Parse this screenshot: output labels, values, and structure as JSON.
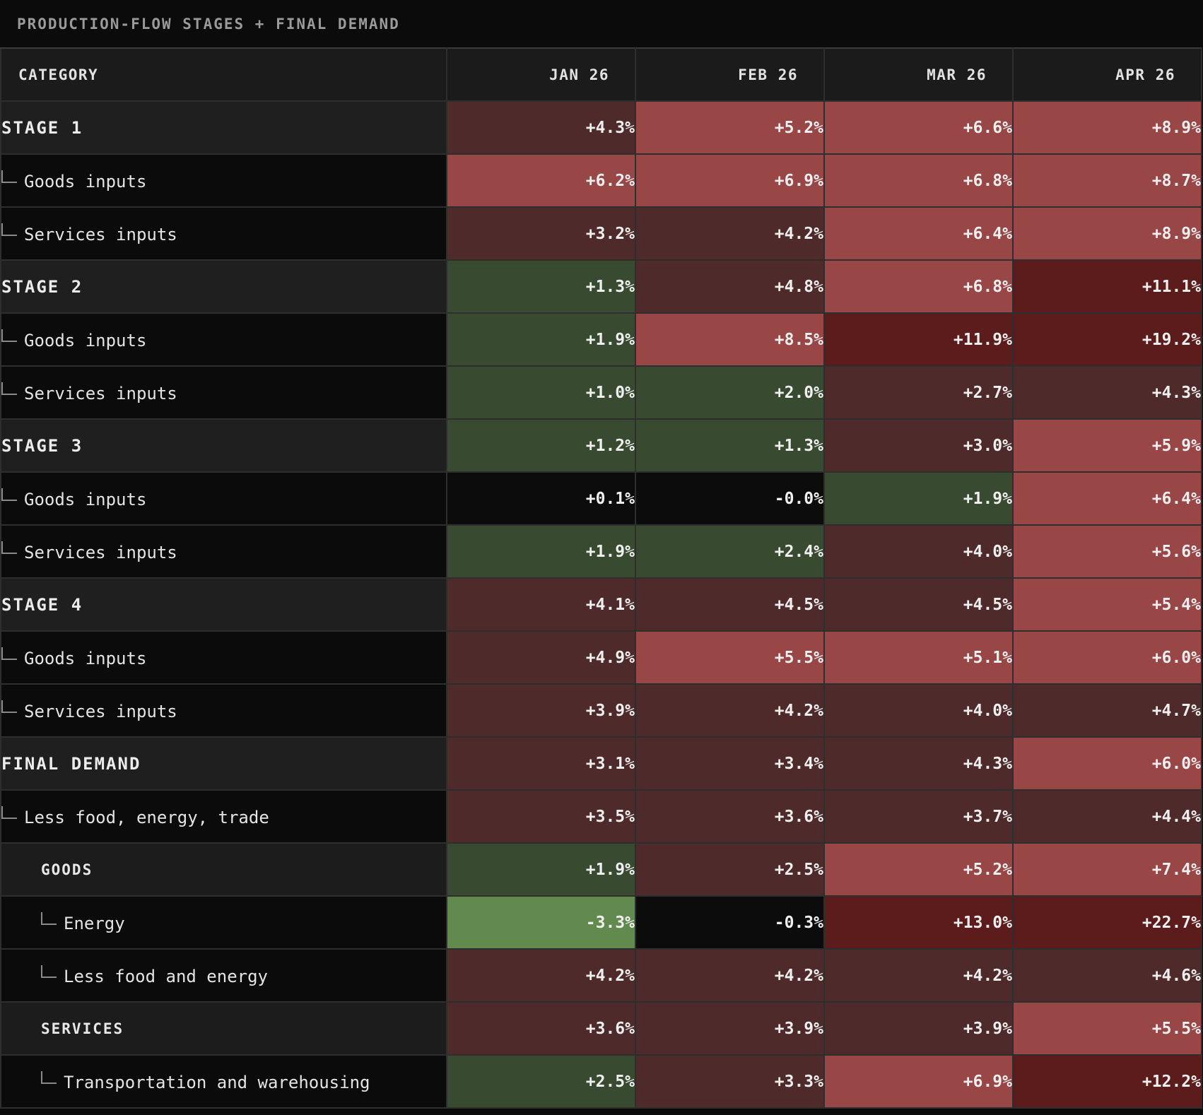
{
  "title": "PRODUCTION-FLOW STAGES + FINAL DEMAND",
  "header": {
    "category": "CATEGORY",
    "months": [
      "JAN 26",
      "FEB 26",
      "MAR 26",
      "APR 26"
    ]
  },
  "colors": {
    "strong_red": "#5c1c1c",
    "red": "#984646",
    "muted_red": "#4f2a2a",
    "neutral": "#0c0c0c",
    "dark_green": "#384a30",
    "bright_green": "#628a4e"
  },
  "chart_data": {
    "type": "heatmap",
    "title": "PRODUCTION-FLOW STAGES + FINAL DEMAND",
    "columns": [
      "JAN 26",
      "FEB 26",
      "MAR 26",
      "APR 26"
    ],
    "rows": [
      {
        "label": "STAGE 1",
        "level": "stage",
        "display": [
          "+4.3%",
          "+5.2%",
          "+6.6%",
          "+8.9%"
        ],
        "values": [
          4.3,
          5.2,
          6.6,
          8.9
        ],
        "shade": [
          "muted_red",
          "red",
          "red",
          "red"
        ]
      },
      {
        "label": "Goods inputs",
        "level": "sub",
        "display": [
          "+6.2%",
          "+6.9%",
          "+6.8%",
          "+8.7%"
        ],
        "values": [
          6.2,
          6.9,
          6.8,
          8.7
        ],
        "shade": [
          "red",
          "red",
          "red",
          "red"
        ]
      },
      {
        "label": "Services inputs",
        "level": "sub",
        "display": [
          "+3.2%",
          "+4.2%",
          "+6.4%",
          "+8.9%"
        ],
        "values": [
          3.2,
          4.2,
          6.4,
          8.9
        ],
        "shade": [
          "muted_red",
          "muted_red",
          "red",
          "red"
        ]
      },
      {
        "label": "STAGE 2",
        "level": "stage",
        "display": [
          "+1.3%",
          "+4.8%",
          "+6.8%",
          "+11.1%"
        ],
        "values": [
          1.3,
          4.8,
          6.8,
          11.1
        ],
        "shade": [
          "dark_green",
          "muted_red",
          "red",
          "strong_red"
        ]
      },
      {
        "label": "Goods inputs",
        "level": "sub",
        "display": [
          "+1.9%",
          "+8.5%",
          "+11.9%",
          "+19.2%"
        ],
        "values": [
          1.9,
          8.5,
          11.9,
          19.2
        ],
        "shade": [
          "dark_green",
          "red",
          "strong_red",
          "strong_red"
        ]
      },
      {
        "label": "Services inputs",
        "level": "sub",
        "display": [
          "+1.0%",
          "+2.0%",
          "+2.7%",
          "+4.3%"
        ],
        "values": [
          1.0,
          2.0,
          2.7,
          4.3
        ],
        "shade": [
          "dark_green",
          "dark_green",
          "muted_red",
          "muted_red"
        ]
      },
      {
        "label": "STAGE 3",
        "level": "stage",
        "display": [
          "+1.2%",
          "+1.3%",
          "+3.0%",
          "+5.9%"
        ],
        "values": [
          1.2,
          1.3,
          3.0,
          5.9
        ],
        "shade": [
          "dark_green",
          "dark_green",
          "muted_red",
          "red"
        ]
      },
      {
        "label": "Goods inputs",
        "level": "sub",
        "display": [
          "+0.1%",
          "-0.0%",
          "+1.9%",
          "+6.4%"
        ],
        "values": [
          0.1,
          -0.0,
          1.9,
          6.4
        ],
        "shade": [
          "neutral",
          "neutral",
          "dark_green",
          "red"
        ]
      },
      {
        "label": "Services inputs",
        "level": "sub",
        "display": [
          "+1.9%",
          "+2.4%",
          "+4.0%",
          "+5.6%"
        ],
        "values": [
          1.9,
          2.4,
          4.0,
          5.6
        ],
        "shade": [
          "dark_green",
          "dark_green",
          "muted_red",
          "red"
        ]
      },
      {
        "label": "STAGE 4",
        "level": "stage",
        "display": [
          "+4.1%",
          "+4.5%",
          "+4.5%",
          "+5.4%"
        ],
        "values": [
          4.1,
          4.5,
          4.5,
          5.4
        ],
        "shade": [
          "muted_red",
          "muted_red",
          "muted_red",
          "red"
        ]
      },
      {
        "label": "Goods inputs",
        "level": "sub",
        "display": [
          "+4.9%",
          "+5.5%",
          "+5.1%",
          "+6.0%"
        ],
        "values": [
          4.9,
          5.5,
          5.1,
          6.0
        ],
        "shade": [
          "muted_red",
          "red",
          "red",
          "red"
        ]
      },
      {
        "label": "Services inputs",
        "level": "sub",
        "display": [
          "+3.9%",
          "+4.2%",
          "+4.0%",
          "+4.7%"
        ],
        "values": [
          3.9,
          4.2,
          4.0,
          4.7
        ],
        "shade": [
          "muted_red",
          "muted_red",
          "muted_red",
          "muted_red"
        ]
      },
      {
        "label": "FINAL DEMAND",
        "level": "stage",
        "display": [
          "+3.1%",
          "+3.4%",
          "+4.3%",
          "+6.0%"
        ],
        "values": [
          3.1,
          3.4,
          4.3,
          6.0
        ],
        "shade": [
          "muted_red",
          "muted_red",
          "muted_red",
          "red"
        ]
      },
      {
        "label": "Less food, energy, trade",
        "level": "sub",
        "display": [
          "+3.5%",
          "+3.6%",
          "+3.7%",
          "+4.4%"
        ],
        "values": [
          3.5,
          3.6,
          3.7,
          4.4
        ],
        "shade": [
          "muted_red",
          "muted_red",
          "muted_red",
          "muted_red"
        ]
      },
      {
        "label": "GOODS",
        "level": "group",
        "display": [
          "+1.9%",
          "+2.5%",
          "+5.2%",
          "+7.4%"
        ],
        "values": [
          1.9,
          2.5,
          5.2,
          7.4
        ],
        "shade": [
          "dark_green",
          "muted_red",
          "red",
          "red"
        ]
      },
      {
        "label": "Energy",
        "level": "subsub",
        "display": [
          "-3.3%",
          "-0.3%",
          "+13.0%",
          "+22.7%"
        ],
        "values": [
          -3.3,
          -0.3,
          13.0,
          22.7
        ],
        "shade": [
          "bright_green",
          "neutral",
          "strong_red",
          "strong_red"
        ]
      },
      {
        "label": "Less food and energy",
        "level": "subsub",
        "display": [
          "+4.2%",
          "+4.2%",
          "+4.2%",
          "+4.6%"
        ],
        "values": [
          4.2,
          4.2,
          4.2,
          4.6
        ],
        "shade": [
          "muted_red",
          "muted_red",
          "muted_red",
          "muted_red"
        ]
      },
      {
        "label": "SERVICES",
        "level": "group",
        "display": [
          "+3.6%",
          "+3.9%",
          "+3.9%",
          "+5.5%"
        ],
        "values": [
          3.6,
          3.9,
          3.9,
          5.5
        ],
        "shade": [
          "muted_red",
          "muted_red",
          "muted_red",
          "red"
        ]
      },
      {
        "label": "Transportation and warehousing",
        "level": "subsub",
        "display": [
          "+2.5%",
          "+3.3%",
          "+6.9%",
          "+12.2%"
        ],
        "values": [
          2.5,
          3.3,
          6.9,
          12.2
        ],
        "shade": [
          "dark_green",
          "muted_red",
          "red",
          "strong_red"
        ]
      }
    ]
  }
}
